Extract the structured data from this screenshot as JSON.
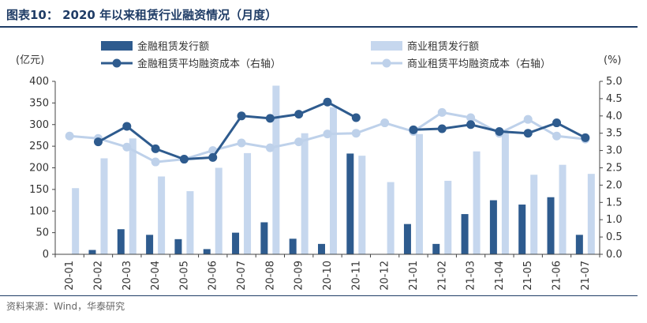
{
  "header": {
    "title": "图表10：  2020 年以来租赁行业融资情况（月度）"
  },
  "footer": {
    "source": "资料来源：Wind，华泰研究"
  },
  "colors": {
    "dark": "#2e5b8e",
    "light": "#c6d7ee",
    "lightLine": "#bed1ea",
    "axis": "#444444"
  },
  "chart_data": {
    "type": "bar",
    "categories": [
      "20-01",
      "20-02",
      "20-03",
      "20-04",
      "20-05",
      "20-06",
      "20-07",
      "20-08",
      "20-09",
      "20-10",
      "20-11",
      "20-12",
      "21-01",
      "21-02",
      "21-03",
      "21-04",
      "21-05",
      "21-06",
      "21-07"
    ],
    "ylabel": "(亿元)",
    "ylabel_right": "(%)",
    "ylim": [
      0,
      400
    ],
    "yticks": [
      0,
      50,
      100,
      150,
      200,
      250,
      300,
      350,
      400
    ],
    "ylim_right": [
      0,
      5
    ],
    "yticks_right": [
      "0.0",
      "0.5",
      "1.0",
      "1.5",
      "2.0",
      "2.5",
      "3.0",
      "3.5",
      "4.0",
      "4.5",
      "5.0"
    ],
    "series": [
      {
        "name": "金融租赁发行额",
        "kind": "bar",
        "axis": "left",
        "values": [
          0,
          10,
          58,
          45,
          35,
          12,
          50,
          74,
          36,
          24,
          233,
          0,
          70,
          24,
          93,
          125,
          115,
          132,
          45
        ]
      },
      {
        "name": "商业租赁发行额",
        "kind": "bar",
        "axis": "left",
        "values": [
          153,
          222,
          268,
          180,
          146,
          200,
          234,
          390,
          280,
          340,
          228,
          167,
          278,
          170,
          238,
          280,
          184,
          207,
          186
        ]
      },
      {
        "name": "金融租赁平均融资成本（右轴）",
        "kind": "line",
        "axis": "right",
        "values": [
          null,
          3.25,
          3.7,
          3.05,
          2.75,
          2.8,
          4.0,
          3.93,
          4.05,
          4.4,
          3.95,
          null,
          3.6,
          3.63,
          3.75,
          3.55,
          3.5,
          3.8,
          3.37
        ]
      },
      {
        "name": "商业租赁平均融资成本（右轴）",
        "kind": "line",
        "axis": "right",
        "values": [
          3.42,
          3.35,
          3.1,
          2.67,
          2.75,
          3.0,
          3.22,
          3.08,
          3.25,
          3.48,
          3.5,
          3.8,
          3.55,
          4.1,
          3.95,
          3.5,
          3.9,
          3.42,
          3.33
        ]
      }
    ]
  }
}
